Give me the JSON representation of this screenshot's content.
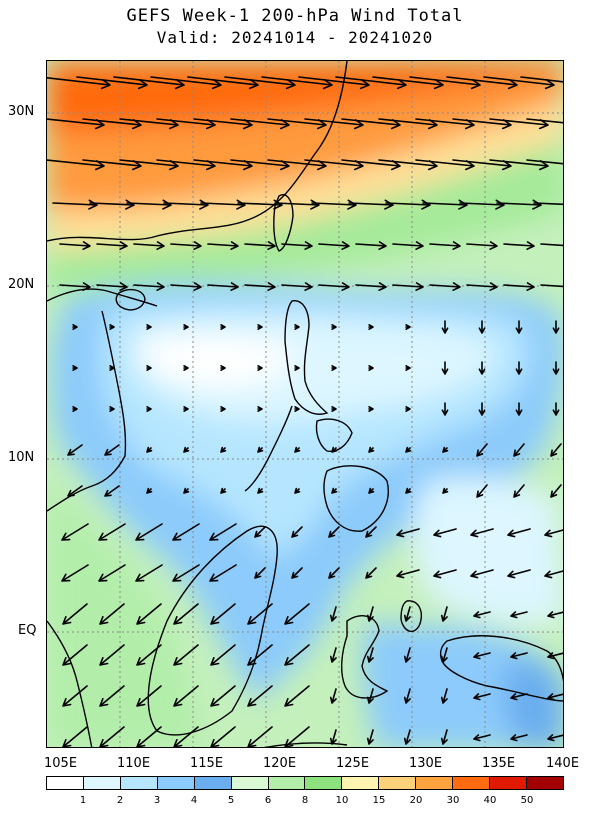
{
  "title": {
    "line1": "GEFS Week-1 200-hPa Wind Total",
    "line2": "Valid: 20241014 - 20241020"
  },
  "axes": {
    "lat_ticks": [
      "30N",
      "20N",
      "10N",
      "EQ"
    ],
    "lon_ticks": [
      "105E",
      "110E",
      "115E",
      "120E",
      "125E",
      "130E",
      "135E",
      "140E"
    ]
  },
  "colorbar": {
    "labels": [
      "1",
      "2",
      "3",
      "4",
      "5",
      "6",
      "8",
      "10",
      "15",
      "20",
      "30",
      "40",
      "50"
    ],
    "colors": [
      "#ffffff",
      "#ddf6ff",
      "#b6e6ff",
      "#8ccbfb",
      "#6baeef",
      "#d9f8d4",
      "#b2eeaa",
      "#8de27f",
      "#fff5b0",
      "#ffd27a",
      "#ffa340",
      "#ff6b10",
      "#e01a00",
      "#a30000"
    ]
  },
  "chart_data": {
    "type": "map",
    "field": "200-hPa wind speed and direction (m/s)",
    "extent": {
      "lon": [
        105,
        140
      ],
      "lat": [
        -7,
        33
      ]
    },
    "colors": {
      "land_outline": "#000000",
      "grid": "#8a8a8a"
    }
  }
}
